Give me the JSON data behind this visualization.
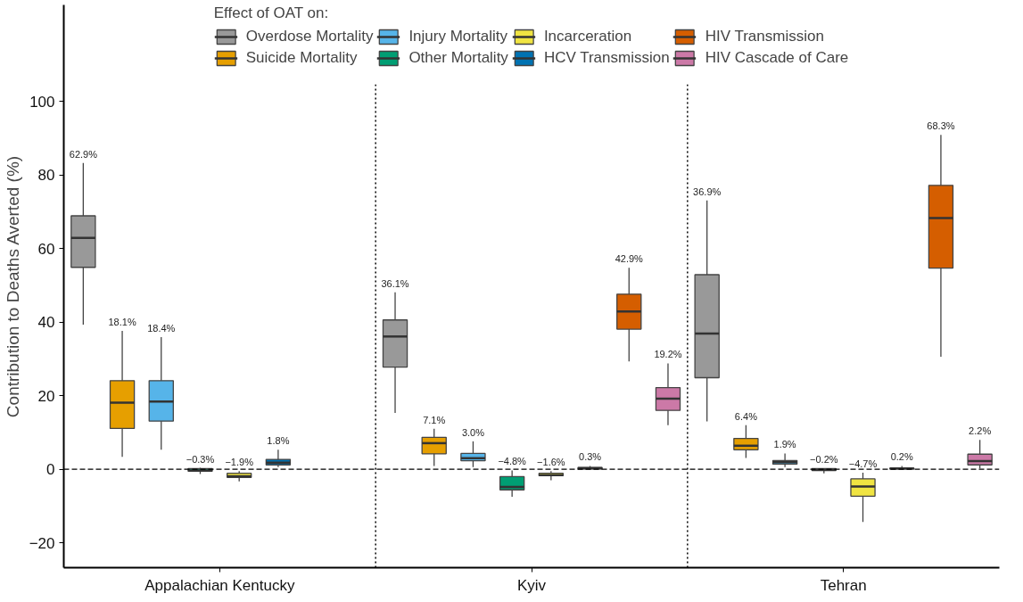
{
  "chart_data": {
    "type": "box",
    "ylabel": "Contribution to Deaths Averted (%)",
    "legend_title": "Effect of OAT on:",
    "legend": "top",
    "categories": [
      "Appalachian Kentucky",
      "Kyiv",
      "Tehran"
    ],
    "ylim": [
      -26.75,
      126.25
    ],
    "yticks": [
      -20,
      0,
      20,
      40,
      60,
      80,
      100
    ],
    "grid": false,
    "ref_lines": [
      {
        "axis": "y",
        "value": 0,
        "line_style": "dashed"
      }
    ],
    "series": [
      {
        "name": "Overdose Mortality",
        "color": "#999999",
        "value_labels": [
          "62.9%",
          "36.1%",
          "36.9%"
        ],
        "boxes": [
          {
            "low": 39.3,
            "q1": 54.9,
            "median": 62.9,
            "q3": 68.9,
            "high": 83.3
          },
          {
            "low": 15.3,
            "q1": 27.8,
            "median": 36.1,
            "q3": 40.6,
            "high": 48.1
          },
          {
            "low": 13,
            "q1": 24.9,
            "median": 36.9,
            "q3": 52.9,
            "high": 73.1
          }
        ]
      },
      {
        "name": "Suicide Mortality",
        "color": "#e69f00",
        "value_labels": [
          "18.1%",
          "7.1%",
          "6.4%"
        ],
        "boxes": [
          {
            "low": 3.4,
            "q1": 11.1,
            "median": 18.1,
            "q3": 24.1,
            "high": 37.6
          },
          {
            "low": 0.9,
            "q1": 4.2,
            "median": 7.1,
            "q3": 8.7,
            "high": 11
          },
          {
            "low": 3.1,
            "q1": 5.3,
            "median": 6.4,
            "q3": 8.4,
            "high": 12
          }
        ]
      },
      {
        "name": "Injury Mortality",
        "color": "#56b4e9",
        "value_labels": [
          "18.4%",
          "3.0%",
          "1.9%"
        ],
        "boxes": [
          {
            "low": 5.3,
            "q1": 13.1,
            "median": 18.4,
            "q3": 24.1,
            "high": 35.9
          },
          {
            "low": 0.6,
            "q1": 2.3,
            "median": 3.0,
            "q3": 4.3,
            "high": 7.6
          },
          {
            "low": 0.6,
            "q1": 1.4,
            "median": 1.9,
            "q3": 2.4,
            "high": 4.3
          }
        ]
      },
      {
        "name": "Other Mortality",
        "color": "#009e73",
        "value_labels": [
          "−0.3%",
          "−4.8%",
          "−0.2%"
        ],
        "boxes": [
          {
            "low": -1.3,
            "q1": -0.5,
            "median": -0.3,
            "q3": 0.2,
            "high": 0.4
          },
          {
            "low": -7.5,
            "q1": -5.6,
            "median": -4.8,
            "q3": -2,
            "high": -0.3
          },
          {
            "low": -1.1,
            "q1": -0.3,
            "median": -0.2,
            "q3": 0.2,
            "high": 0.3
          }
        ]
      },
      {
        "name": "Incarceration",
        "color": "#f0e442",
        "value_labels": [
          "−1.9%",
          "−1.6%",
          "−4.7%"
        ],
        "boxes": [
          {
            "low": -3.3,
            "q1": -2.2,
            "median": -1.9,
            "q3": -1.1,
            "high": -0.5
          },
          {
            "low": -3,
            "q1": -1.75,
            "median": -1.6,
            "q3": -1.1,
            "high": -0.5
          },
          {
            "low": -14.3,
            "q1": -7.3,
            "median": -4.7,
            "q3": -2.6,
            "high": -0.9
          }
        ]
      },
      {
        "name": "HCV Transmission",
        "color": "#0072b2",
        "value_labels": [
          "1.8%",
          "0.3%",
          "0.2%"
        ],
        "boxes": [
          {
            "low": 0.6,
            "q1": 1.2,
            "median": 1.8,
            "q3": 2.7,
            "high": 5.3
          },
          {
            "low": 0,
            "q1": 0.1,
            "median": 0.3,
            "q3": 0.5,
            "high": 0.9
          },
          {
            "low": 0,
            "q1": 0.05,
            "median": 0.2,
            "q3": 0.3,
            "high": 0.9
          }
        ]
      },
      {
        "name": "HIV Transmission",
        "color": "#d55e00",
        "value_labels": [
          null,
          "42.9%",
          "68.3%"
        ],
        "boxes": [
          null,
          {
            "low": 29.3,
            "q1": 38.1,
            "median": 42.9,
            "q3": 47.6,
            "high": 54.8
          },
          {
            "low": 30.6,
            "q1": 54.7,
            "median": 68.3,
            "q3": 77.2,
            "high": 90.9
          }
        ]
      },
      {
        "name": "HIV Cascade of Care",
        "color": "#cc79a7",
        "value_labels": [
          null,
          "19.2%",
          "2.2%"
        ],
        "boxes": [
          null,
          {
            "low": 12,
            "q1": 16,
            "median": 19.2,
            "q3": 22.2,
            "high": 28.8
          },
          {
            "low": 0.2,
            "q1": 1.2,
            "median": 2.2,
            "q3": 4.1,
            "high": 8
          }
        ]
      }
    ]
  }
}
